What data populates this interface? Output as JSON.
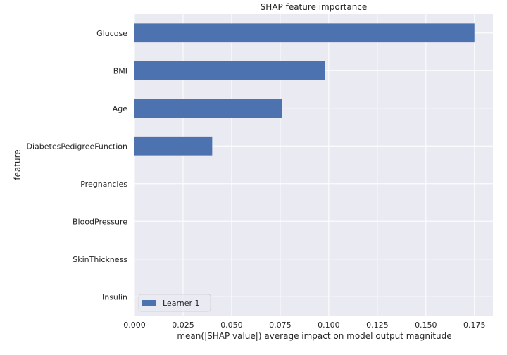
{
  "chart_data": {
    "type": "bar",
    "orientation": "horizontal",
    "title": "SHAP feature importance",
    "xlabel": "mean(|SHAP value|) average impact on model output magnitude",
    "ylabel": "feature",
    "categories": [
      "Glucose",
      "BMI",
      "Age",
      "DiabetesPedigreeFunction",
      "Pregnancies",
      "BloodPressure",
      "SkinThickness",
      "Insulin"
    ],
    "series": [
      {
        "name": "Learner 1",
        "values": [
          0.175,
          0.098,
          0.076,
          0.04,
          0.0,
          0.0,
          0.0,
          0.0
        ],
        "color": "#4c72b0"
      }
    ],
    "xlim": [
      0.0,
      0.1845
    ],
    "xticks": [
      0.0,
      0.025,
      0.05,
      0.075,
      0.1,
      0.125,
      0.15,
      0.175
    ],
    "xtick_labels": [
      "0.000",
      "0.025",
      "0.050",
      "0.075",
      "0.100",
      "0.125",
      "0.150",
      "0.175"
    ],
    "grid": true,
    "legend_position": "bottom-left",
    "colors": {
      "background": "#eaeaf2",
      "grid": "#ffffff",
      "text": "#262626"
    }
  }
}
